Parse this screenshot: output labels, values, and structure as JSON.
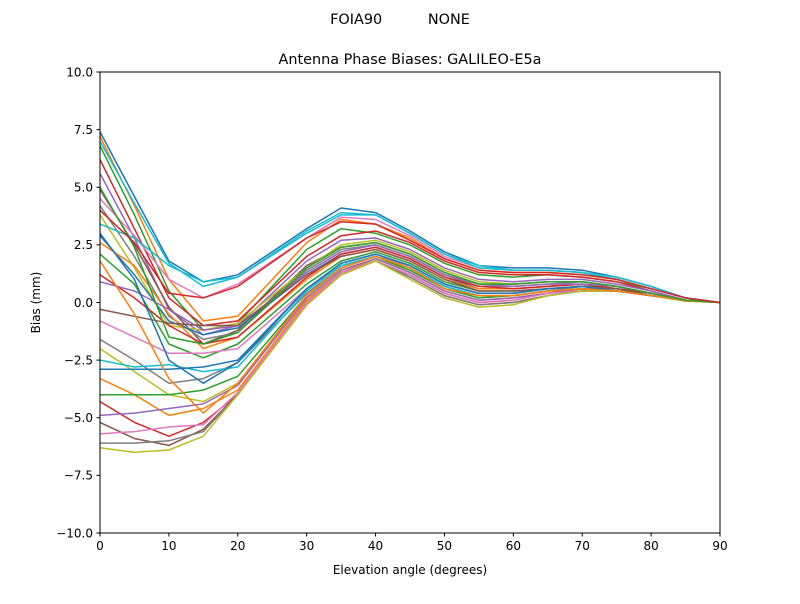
{
  "chart_data": {
    "type": "line",
    "suptitle": "FOIA90          NONE",
    "title": "Antenna Phase Biases: GALILEO-E5a",
    "xlabel": "Elevation angle (degrees)",
    "ylabel": "Bias (mm)",
    "xlim": [
      0,
      90
    ],
    "ylim": [
      -10,
      10
    ],
    "xticks": [
      0,
      10,
      20,
      30,
      40,
      50,
      60,
      70,
      80,
      90
    ],
    "yticks": [
      -10,
      -7.5,
      -5,
      -2.5,
      0,
      2.5,
      5,
      7.5,
      10
    ],
    "ytick_labels": [
      "−10.0",
      "−7.5",
      "−5.0",
      "−2.5",
      "0.0",
      "2.5",
      "5.0",
      "7.5",
      "10.0"
    ],
    "grid": false,
    "legend": "none",
    "colors": [
      "#1f77b4",
      "#ff7f0e",
      "#2ca02c",
      "#d62728",
      "#9467bd",
      "#8c564b",
      "#e377c2",
      "#7f7f7f",
      "#bcbd22",
      "#17becf"
    ],
    "x": [
      0,
      5,
      10,
      15,
      20,
      30,
      35,
      40,
      45,
      50,
      55,
      60,
      65,
      70,
      75,
      80,
      85,
      90
    ],
    "series": [
      {
        "values": [
          7.4,
          4.6,
          1.8,
          0.9,
          1.2,
          3.2,
          4.1,
          3.9,
          3.1,
          2.2,
          1.6,
          1.5,
          1.5,
          1.4,
          1.1,
          0.7,
          0.2,
          0
        ]
      },
      {
        "values": [
          7.2,
          4.2,
          1.0,
          -0.8,
          -0.6,
          2.6,
          3.6,
          3.4,
          2.8,
          1.9,
          1.4,
          1.3,
          1.3,
          1.2,
          1.0,
          0.6,
          0.2,
          0
        ]
      },
      {
        "values": [
          6.8,
          3.8,
          0.5,
          -1.2,
          -0.9,
          2.3,
          3.2,
          3.0,
          2.5,
          1.7,
          1.2,
          1.1,
          1.2,
          1.1,
          0.9,
          0.6,
          0.2,
          0
        ]
      },
      {
        "values": [
          6.2,
          3.2,
          0.2,
          -1.0,
          -0.8,
          2.0,
          2.9,
          3.1,
          2.6,
          1.8,
          1.3,
          1.2,
          1.2,
          1.1,
          0.9,
          0.5,
          0.1,
          0
        ]
      },
      {
        "values": [
          5.6,
          2.8,
          -0.3,
          -1.4,
          -1.0,
          1.8,
          2.7,
          2.8,
          2.3,
          1.5,
          1.0,
          0.9,
          1.0,
          1.0,
          0.8,
          0.5,
          0.1,
          0
        ]
      },
      {
        "values": [
          4.9,
          2.5,
          -0.2,
          -1.8,
          -1.2,
          1.6,
          2.4,
          2.6,
          2.1,
          1.3,
          0.8,
          0.8,
          0.9,
          0.9,
          0.7,
          0.4,
          0.1,
          0
        ]
      },
      {
        "values": [
          4.5,
          2.9,
          1.0,
          0.2,
          0.8,
          2.8,
          3.7,
          3.6,
          2.9,
          2.0,
          1.5,
          1.4,
          1.4,
          1.3,
          1.0,
          0.6,
          0.2,
          0
        ]
      },
      {
        "values": [
          4.2,
          2.0,
          -0.6,
          -1.6,
          -1.3,
          1.4,
          2.3,
          2.5,
          2.0,
          1.2,
          0.7,
          0.7,
          0.8,
          0.9,
          0.7,
          0.4,
          0.1,
          0
        ]
      },
      {
        "values": [
          3.8,
          1.5,
          -1.0,
          -1.2,
          -0.9,
          1.5,
          2.5,
          2.7,
          2.2,
          1.4,
          0.9,
          0.8,
          0.9,
          0.9,
          0.7,
          0.4,
          0.1,
          0
        ]
      },
      {
        "values": [
          3.4,
          2.8,
          1.6,
          0.9,
          1.1,
          3.1,
          3.9,
          3.8,
          3.0,
          2.1,
          1.6,
          1.4,
          1.4,
          1.3,
          1.1,
          0.7,
          0.2,
          0
        ]
      },
      {
        "values": [
          2.9,
          1.2,
          -0.8,
          -1.4,
          -1.1,
          1.2,
          2.1,
          2.4,
          1.9,
          1.1,
          0.6,
          0.6,
          0.7,
          0.8,
          0.6,
          0.4,
          0.1,
          0
        ]
      },
      {
        "values": [
          2.6,
          1.6,
          -0.5,
          -2.0,
          -1.5,
          1.0,
          2.0,
          2.3,
          1.8,
          1.0,
          0.6,
          0.6,
          0.7,
          0.8,
          0.6,
          0.3,
          0.1,
          0
        ]
      },
      {
        "values": [
          2.1,
          0.8,
          -1.8,
          -2.4,
          -1.8,
          0.8,
          1.8,
          2.2,
          1.7,
          0.9,
          0.5,
          0.5,
          0.6,
          0.7,
          0.6,
          0.3,
          0.1,
          0
        ]
      },
      {
        "values": [
          1.2,
          0.2,
          -1.0,
          -1.8,
          -1.5,
          1.1,
          2.1,
          2.4,
          1.9,
          1.1,
          0.7,
          0.6,
          0.7,
          0.8,
          0.6,
          0.4,
          0.1,
          0
        ]
      },
      {
        "values": [
          0.9,
          0.5,
          -0.3,
          -1.2,
          -1.0,
          1.3,
          2.2,
          2.5,
          2.0,
          1.2,
          0.8,
          0.7,
          0.8,
          0.8,
          0.7,
          0.4,
          0.1,
          0
        ]
      },
      {
        "values": [
          -0.3,
          -0.6,
          -0.9,
          -1.0,
          -1.0,
          1.2,
          2.0,
          2.3,
          1.8,
          1.0,
          0.5,
          0.5,
          0.6,
          0.7,
          0.6,
          0.3,
          0.1,
          0
        ]
      },
      {
        "values": [
          -0.8,
          -1.5,
          -2.2,
          -2.2,
          -2.0,
          0.6,
          1.6,
          2.0,
          1.6,
          0.8,
          0.4,
          0.4,
          0.6,
          0.7,
          0.5,
          0.3,
          0.1,
          0
        ]
      },
      {
        "values": [
          -1.6,
          -2.5,
          -3.5,
          -3.3,
          -2.6,
          0.4,
          1.5,
          2.0,
          1.5,
          0.7,
          0.3,
          0.3,
          0.5,
          0.7,
          0.5,
          0.3,
          0.1,
          0
        ]
      },
      {
        "values": [
          -2.0,
          -3.0,
          -4.0,
          -4.3,
          -3.5,
          0.2,
          1.4,
          1.9,
          1.4,
          0.6,
          0.2,
          0.3,
          0.5,
          0.6,
          0.5,
          0.3,
          0.1,
          0
        ]
      },
      {
        "values": [
          -2.5,
          -2.8,
          -2.7,
          -3.0,
          -2.8,
          0.5,
          1.6,
          2.0,
          1.5,
          0.7,
          0.3,
          0.3,
          0.5,
          0.6,
          0.5,
          0.3,
          0.1,
          0
        ]
      },
      {
        "values": [
          -2.9,
          -2.9,
          -2.9,
          -2.8,
          -2.5,
          0.6,
          1.7,
          2.1,
          1.6,
          0.8,
          0.4,
          0.4,
          0.6,
          0.7,
          0.5,
          0.3,
          0.1,
          0
        ]
      },
      {
        "values": [
          -3.3,
          -4.0,
          -4.9,
          -4.6,
          -3.8,
          0.1,
          1.3,
          1.9,
          1.3,
          0.5,
          0.1,
          0.2,
          0.4,
          0.6,
          0.5,
          0.3,
          0.1,
          0
        ]
      },
      {
        "values": [
          -4.0,
          -4.0,
          -4.0,
          -3.8,
          -3.2,
          0.3,
          1.5,
          2.0,
          1.4,
          0.6,
          0.2,
          0.3,
          0.5,
          0.6,
          0.5,
          0.3,
          0.1,
          0
        ]
      },
      {
        "values": [
          -4.3,
          -5.2,
          -5.8,
          -5.2,
          -4.0,
          0.0,
          1.3,
          1.8,
          1.2,
          0.4,
          0.0,
          0.1,
          0.4,
          0.6,
          0.5,
          0.3,
          0.1,
          0
        ]
      },
      {
        "values": [
          -4.9,
          -4.8,
          -4.6,
          -4.4,
          -3.6,
          0.2,
          1.4,
          1.9,
          1.3,
          0.5,
          0.1,
          0.2,
          0.4,
          0.6,
          0.5,
          0.3,
          0.1,
          0
        ]
      },
      {
        "values": [
          -5.2,
          -5.9,
          -6.2,
          -5.5,
          -4.0,
          -0.1,
          1.2,
          1.8,
          1.1,
          0.3,
          -0.1,
          0.0,
          0.3,
          0.5,
          0.5,
          0.3,
          0.1,
          0
        ]
      },
      {
        "values": [
          -5.7,
          -5.6,
          -5.4,
          -5.3,
          -3.9,
          0.0,
          1.3,
          1.8,
          1.2,
          0.4,
          0.0,
          0.1,
          0.4,
          0.5,
          0.5,
          0.3,
          0.1,
          0
        ]
      },
      {
        "values": [
          -6.1,
          -6.1,
          -6.0,
          -5.6,
          -4.0,
          -0.1,
          1.2,
          1.8,
          1.1,
          0.3,
          -0.1,
          0.0,
          0.3,
          0.5,
          0.5,
          0.3,
          0.1,
          0
        ]
      },
      {
        "values": [
          -6.3,
          -6.5,
          -6.4,
          -5.8,
          -4.0,
          -0.1,
          1.2,
          1.8,
          1.0,
          0.2,
          -0.2,
          -0.1,
          0.3,
          0.5,
          0.5,
          0.3,
          0.05,
          0
        ]
      },
      {
        "values": [
          7.0,
          4.3,
          1.7,
          0.7,
          1.1,
          3.0,
          3.8,
          3.8,
          3.0,
          2.1,
          1.5,
          1.4,
          1.4,
          1.3,
          1.0,
          0.6,
          0.2,
          0
        ]
      },
      {
        "values": [
          3.0,
          1.0,
          -2.5,
          -3.5,
          -2.6,
          0.6,
          1.7,
          2.1,
          1.6,
          0.8,
          0.4,
          0.4,
          0.6,
          0.7,
          0.5,
          0.3,
          0.1,
          0
        ]
      },
      {
        "values": [
          1.8,
          -0.5,
          -3.3,
          -4.8,
          -3.5,
          0.3,
          1.5,
          2.0,
          1.5,
          0.6,
          0.3,
          0.3,
          0.5,
          0.6,
          0.5,
          0.3,
          0.1,
          0
        ]
      },
      {
        "values": [
          5.0,
          2.4,
          -1.5,
          -1.8,
          -1.3,
          1.5,
          2.4,
          2.6,
          2.1,
          1.3,
          0.8,
          0.8,
          0.9,
          0.9,
          0.7,
          0.4,
          0.1,
          0
        ]
      },
      {
        "values": [
          4.0,
          2.6,
          0.4,
          0.2,
          0.7,
          2.8,
          3.5,
          3.4,
          2.7,
          1.9,
          1.4,
          1.3,
          1.3,
          1.2,
          1.0,
          0.6,
          0.2,
          0
        ]
      }
    ]
  }
}
